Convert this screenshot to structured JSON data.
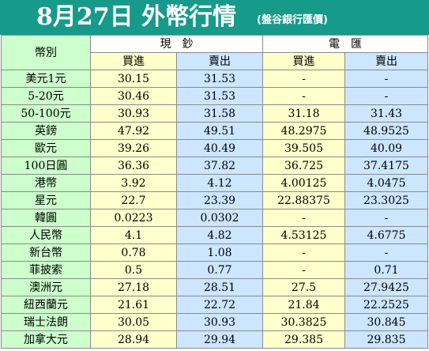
{
  "title": "8月27日 外幣行情",
  "subtitle": "(盤谷銀行匯價)",
  "headers": {
    "currency": "幣別",
    "cash": "現　鈔",
    "telegraphic": "電　匯",
    "buy": "買進",
    "sell": "賣出"
  },
  "rows": [
    {
      "currency": "美元1元",
      "cash_buy": "30.15",
      "cash_sell": "31.53",
      "tt_buy": "-",
      "tt_sell": "-"
    },
    {
      "currency": "5-20元",
      "cash_buy": "30.46",
      "cash_sell": "31.53",
      "tt_buy": "-",
      "tt_sell": "-"
    },
    {
      "currency": "50-100元",
      "cash_buy": "30.93",
      "cash_sell": "31.58",
      "tt_buy": "31.18",
      "tt_sell": "31.43"
    },
    {
      "currency": "英鎊",
      "cash_buy": "47.92",
      "cash_sell": "49.51",
      "tt_buy": "48.2975",
      "tt_sell": "48.9525"
    },
    {
      "currency": "歐元",
      "cash_buy": "39.26",
      "cash_sell": "40.49",
      "tt_buy": "39.505",
      "tt_sell": "40.09"
    },
    {
      "currency": "100日圓",
      "cash_buy": "36.36",
      "cash_sell": "37.82",
      "tt_buy": "36.725",
      "tt_sell": "37.4175"
    },
    {
      "currency": "港幣",
      "cash_buy": "3.92",
      "cash_sell": "4.12",
      "tt_buy": "4.00125",
      "tt_sell": "4.0475"
    },
    {
      "currency": "星元",
      "cash_buy": "22.7",
      "cash_sell": "23.39",
      "tt_buy": "22.88375",
      "tt_sell": "23.3025"
    },
    {
      "currency": "韓圓",
      "cash_buy": "0.0223",
      "cash_sell": "0.0302",
      "tt_buy": "-",
      "tt_sell": "-"
    },
    {
      "currency": "人民幣",
      "cash_buy": "4.1",
      "cash_sell": "4.82",
      "tt_buy": "4.53125",
      "tt_sell": "4.6775"
    },
    {
      "currency": "新台幣",
      "cash_buy": "0.78",
      "cash_sell": "1.08",
      "tt_buy": "-",
      "tt_sell": "-"
    },
    {
      "currency": "菲披索",
      "cash_buy": "0.5",
      "cash_sell": "0.77",
      "tt_buy": "-",
      "tt_sell": "0.71"
    },
    {
      "currency": "澳洲元",
      "cash_buy": "27.18",
      "cash_sell": "28.51",
      "tt_buy": "27.5",
      "tt_sell": "27.9425"
    },
    {
      "currency": "紐西蘭元",
      "cash_buy": "21.61",
      "cash_sell": "22.72",
      "tt_buy": "21.84",
      "tt_sell": "22.2525"
    },
    {
      "currency": "瑞士法朗",
      "cash_buy": "30.05",
      "cash_sell": "30.93",
      "tt_buy": "30.3825",
      "tt_sell": "30.845"
    },
    {
      "currency": "加拿大元",
      "cash_buy": "28.94",
      "cash_sell": "29.94",
      "tt_buy": "29.385",
      "tt_sell": "29.835"
    }
  ]
}
